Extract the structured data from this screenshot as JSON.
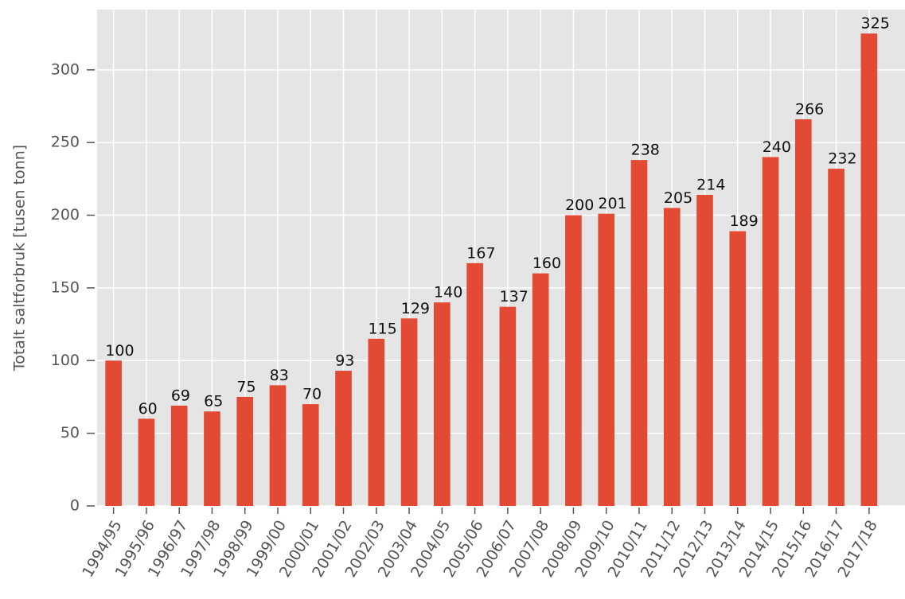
{
  "chart_data": {
    "type": "bar",
    "ylabel": "Totalt saltforbruk [tusen tonn]",
    "categories": [
      "1994/95",
      "1995/96",
      "1996/97",
      "1997/98",
      "1998/99",
      "1999/00",
      "2000/01",
      "2001/02",
      "2002/03",
      "2003/04",
      "2004/05",
      "2005/06",
      "2006/07",
      "2007/08",
      "2008/09",
      "2009/10",
      "2010/11",
      "2011/12",
      "2012/13",
      "2013/14",
      "2014/15",
      "2015/16",
      "2016/17",
      "2017/18"
    ],
    "values": [
      100,
      60,
      69,
      65,
      75,
      83,
      70,
      93,
      115,
      129,
      140,
      167,
      137,
      160,
      200,
      201,
      238,
      205,
      214,
      189,
      240,
      266,
      232,
      325
    ],
    "color": "#e24a33",
    "ylim": [
      0,
      341.5
    ],
    "yticks": [
      0,
      50,
      100,
      150,
      200,
      250,
      300
    ],
    "grid": true
  }
}
